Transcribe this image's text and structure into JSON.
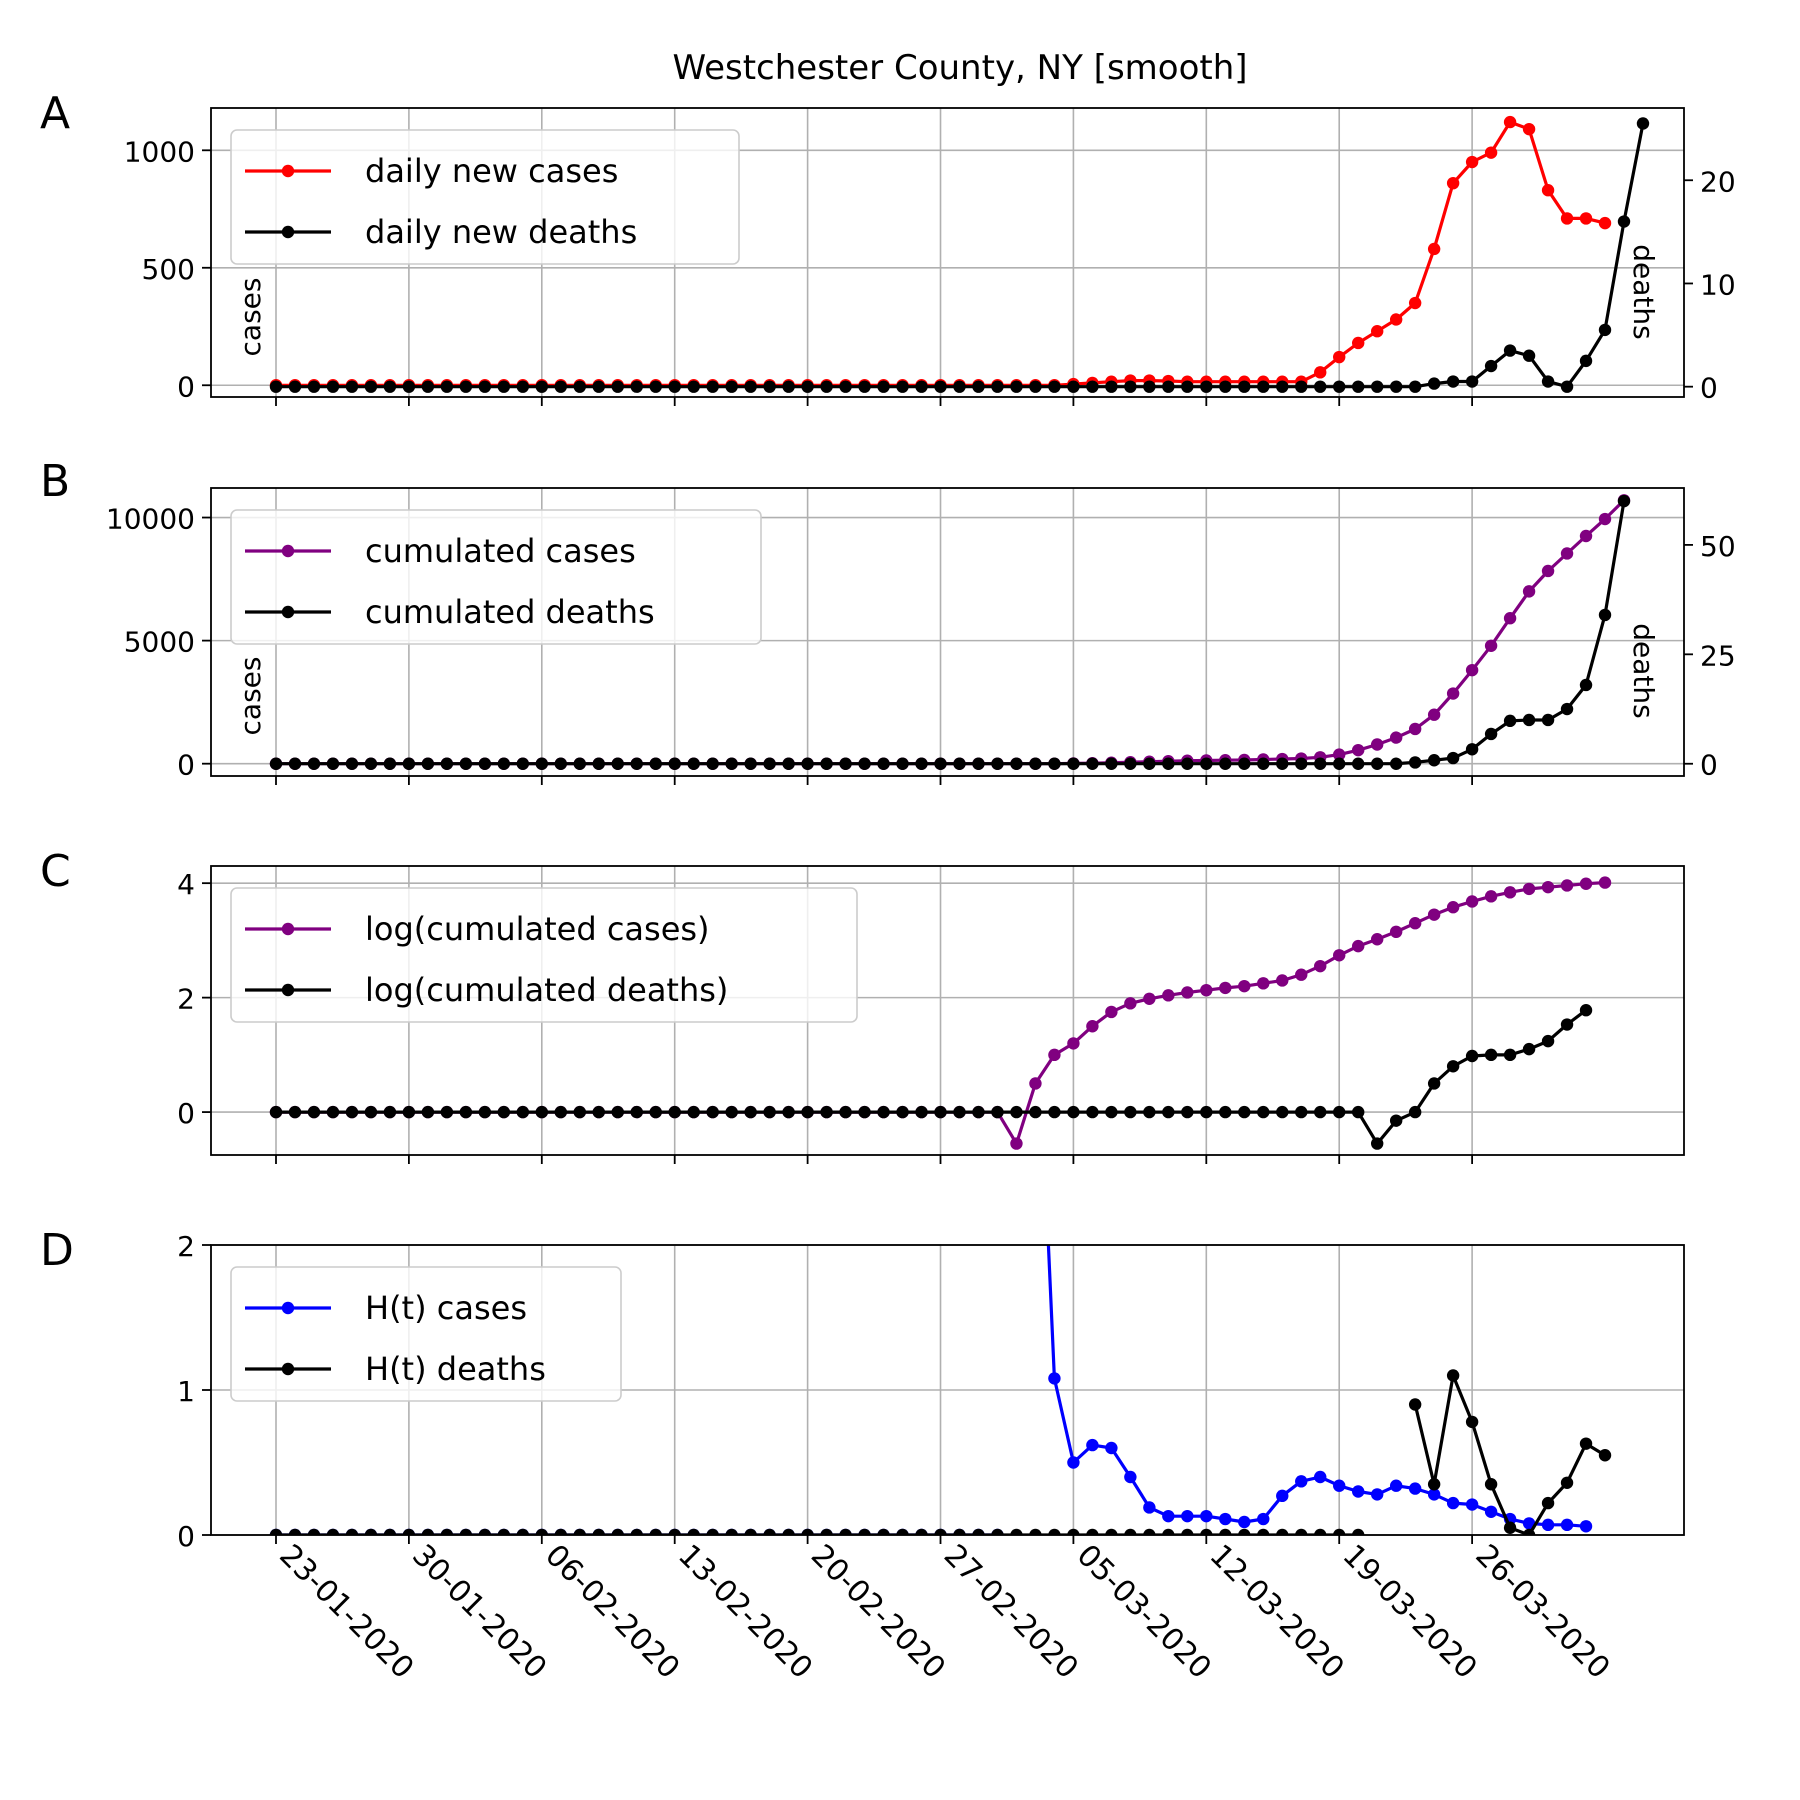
{
  "figure": {
    "title": "Westchester County, NY [smooth]"
  },
  "chart_data": [
    {
      "id": "A",
      "panel_letter": "A",
      "type": "line",
      "x_start": "2020-01-23",
      "x_tick_labels": [
        "23-01-2020",
        "30-01-2020",
        "06-02-2020",
        "13-02-2020",
        "20-02-2020",
        "27-02-2020",
        "05-03-2020",
        "12-03-2020",
        "19-03-2020",
        "26-03-2020"
      ],
      "ylabel_left": "cases",
      "ylabel_right": "deaths",
      "ylim_left": [
        -50,
        1180
      ],
      "ylim_right": [
        -1,
        27
      ],
      "yticks_left": [
        0,
        500,
        1000
      ],
      "yticks_right": [
        0,
        10,
        20
      ],
      "grid": true,
      "legend": "top-left",
      "series": [
        {
          "name": "daily new cases",
          "axis": "left",
          "color": "#ff0000",
          "values": [
            0,
            0,
            0,
            0,
            0,
            0,
            0,
            0,
            0,
            0,
            0,
            0,
            0,
            0,
            0,
            0,
            0,
            0,
            0,
            0,
            0,
            0,
            0,
            0,
            0,
            0,
            0,
            0,
            0,
            0,
            0,
            0,
            0,
            0,
            0,
            0,
            0,
            0,
            0,
            0,
            0,
            0,
            5,
            10,
            15,
            20,
            20,
            18,
            15,
            15,
            15,
            15,
            15,
            15,
            15,
            55,
            120,
            180,
            230,
            280,
            350,
            580,
            860,
            950,
            990,
            1120,
            1090,
            830,
            710,
            710,
            690
          ]
        },
        {
          "name": "daily new deaths",
          "axis": "right",
          "color": "#000000",
          "values": [
            0,
            0,
            0,
            0,
            0,
            0,
            0,
            0,
            0,
            0,
            0,
            0,
            0,
            0,
            0,
            0,
            0,
            0,
            0,
            0,
            0,
            0,
            0,
            0,
            0,
            0,
            0,
            0,
            0,
            0,
            0,
            0,
            0,
            0,
            0,
            0,
            0,
            0,
            0,
            0,
            0,
            0,
            0,
            0,
            0,
            0,
            0,
            0,
            0,
            0,
            0,
            0,
            0,
            0,
            0,
            0,
            0,
            0,
            0,
            0,
            0,
            0.3,
            0.5,
            0.5,
            2,
            3.5,
            3,
            0.5,
            0,
            2.5,
            5.5,
            16,
            25.5
          ]
        }
      ]
    },
    {
      "id": "B",
      "panel_letter": "B",
      "type": "line",
      "ylabel_left": "cases",
      "ylabel_right": "deaths",
      "ylim_left": [
        -500,
        11200
      ],
      "ylim_right": [
        -2.8,
        63
      ],
      "yticks_left": [
        0,
        5000,
        10000
      ],
      "yticks_right": [
        0,
        25,
        50
      ],
      "grid": true,
      "legend": "top-left",
      "series": [
        {
          "name": "cumulated cases",
          "axis": "left",
          "color": "#800080",
          "values": [
            0,
            0,
            0,
            0,
            0,
            0,
            0,
            0,
            0,
            0,
            0,
            0,
            0,
            0,
            0,
            0,
            0,
            0,
            0,
            0,
            0,
            0,
            0,
            0,
            0,
            0,
            0,
            0,
            0,
            0,
            0,
            0,
            0,
            0,
            0,
            0,
            0,
            0,
            0,
            0,
            0,
            0,
            10,
            20,
            40,
            60,
            80,
            100,
            120,
            130,
            140,
            150,
            170,
            190,
            210,
            260,
            370,
            550,
            780,
            1060,
            1410,
            1990,
            2850,
            3800,
            4790,
            5910,
            7000,
            7830,
            8540,
            9250,
            9940,
            10700
          ]
        },
        {
          "name": "cumulated deaths",
          "axis": "right",
          "color": "#000000",
          "values": [
            0,
            0,
            0,
            0,
            0,
            0,
            0,
            0,
            0,
            0,
            0,
            0,
            0,
            0,
            0,
            0,
            0,
            0,
            0,
            0,
            0,
            0,
            0,
            0,
            0,
            0,
            0,
            0,
            0,
            0,
            0,
            0,
            0,
            0,
            0,
            0,
            0,
            0,
            0,
            0,
            0,
            0,
            0,
            0,
            0,
            0,
            0,
            0,
            0,
            0,
            0,
            0,
            0,
            0,
            0,
            0,
            0,
            0,
            0,
            0,
            0.3,
            0.8,
            1.3,
            3.3,
            6.8,
            9.8,
            10,
            10,
            12.5,
            18,
            34,
            60
          ]
        }
      ]
    },
    {
      "id": "C",
      "panel_letter": "C",
      "type": "line",
      "ylim_left": [
        -0.75,
        4.3
      ],
      "yticks_left": [
        0,
        2,
        4
      ],
      "grid": true,
      "legend": "top-left",
      "series": [
        {
          "name": "log(cumulated cases)",
          "axis": "left",
          "color": "#800080",
          "values": [
            0,
            0,
            0,
            0,
            0,
            0,
            0,
            0,
            0,
            0,
            0,
            0,
            0,
            0,
            0,
            0,
            0,
            0,
            0,
            0,
            0,
            0,
            0,
            0,
            0,
            0,
            0,
            0,
            0,
            0,
            0,
            0,
            0,
            0,
            0,
            0,
            0,
            0,
            0,
            -0.55,
            0.5,
            1.0,
            1.2,
            1.5,
            1.75,
            1.9,
            1.98,
            2.04,
            2.09,
            2.13,
            2.17,
            2.2,
            2.25,
            2.3,
            2.4,
            2.55,
            2.74,
            2.9,
            3.02,
            3.15,
            3.3,
            3.45,
            3.58,
            3.68,
            3.77,
            3.84,
            3.9,
            3.93,
            3.96,
            3.99,
            4.01
          ]
        },
        {
          "name": "log(cumulated deaths)",
          "axis": "left",
          "color": "#000000",
          "values": [
            0,
            0,
            0,
            0,
            0,
            0,
            0,
            0,
            0,
            0,
            0,
            0,
            0,
            0,
            0,
            0,
            0,
            0,
            0,
            0,
            0,
            0,
            0,
            0,
            0,
            0,
            0,
            0,
            0,
            0,
            0,
            0,
            0,
            0,
            0,
            0,
            0,
            0,
            0,
            0,
            0,
            0,
            0,
            0,
            0,
            0,
            0,
            0,
            0,
            0,
            0,
            0,
            0,
            0,
            0,
            0,
            0,
            0,
            -0.55,
            -0.15,
            0,
            0.5,
            0.8,
            0.98,
            1.0,
            1.0,
            1.1,
            1.24,
            1.53,
            1.78
          ]
        }
      ]
    },
    {
      "id": "D",
      "panel_letter": "D",
      "type": "line",
      "ylim_left": [
        0,
        2
      ],
      "yticks_left": [
        0,
        1,
        2
      ],
      "grid": true,
      "legend": "top-left",
      "series": [
        {
          "name": "H(t) cases",
          "axis": "left",
          "color": "#0000ff",
          "values": [
            0,
            0,
            0,
            0,
            0,
            0,
            0,
            0,
            0,
            0,
            0,
            0,
            0,
            0,
            0,
            0,
            0,
            0,
            0,
            0,
            0,
            0,
            0,
            0,
            0,
            0,
            0,
            0,
            0,
            0,
            0,
            0,
            0,
            0,
            0,
            0,
            0,
            0,
            0,
            null,
            4,
            1.08,
            0.5,
            0.62,
            0.6,
            0.4,
            0.19,
            0.13,
            0.13,
            0.13,
            0.11,
            0.09,
            0.11,
            0.27,
            0.37,
            0.4,
            0.34,
            0.3,
            0.28,
            0.34,
            0.32,
            0.28,
            0.22,
            0.21,
            0.16,
            0.11,
            0.08,
            0.07,
            0.07,
            0.06
          ]
        },
        {
          "name": "H(t) deaths",
          "axis": "left",
          "color": "#000000",
          "values": [
            0,
            0,
            0,
            0,
            0,
            0,
            0,
            0,
            0,
            0,
            0,
            0,
            0,
            0,
            0,
            0,
            0,
            0,
            0,
            0,
            0,
            0,
            0,
            0,
            0,
            0,
            0,
            0,
            0,
            0,
            0,
            0,
            0,
            0,
            0,
            0,
            0,
            0,
            0,
            0,
            0,
            0,
            0,
            0,
            0,
            0,
            0,
            0,
            0,
            0,
            0,
            0,
            0,
            0,
            0,
            0,
            0,
            0,
            null,
            null,
            0.9,
            0.35,
            1.1,
            0.78,
            0.35,
            0.05,
            0.0,
            0.22,
            0.36,
            0.63,
            0.55
          ]
        }
      ]
    }
  ]
}
